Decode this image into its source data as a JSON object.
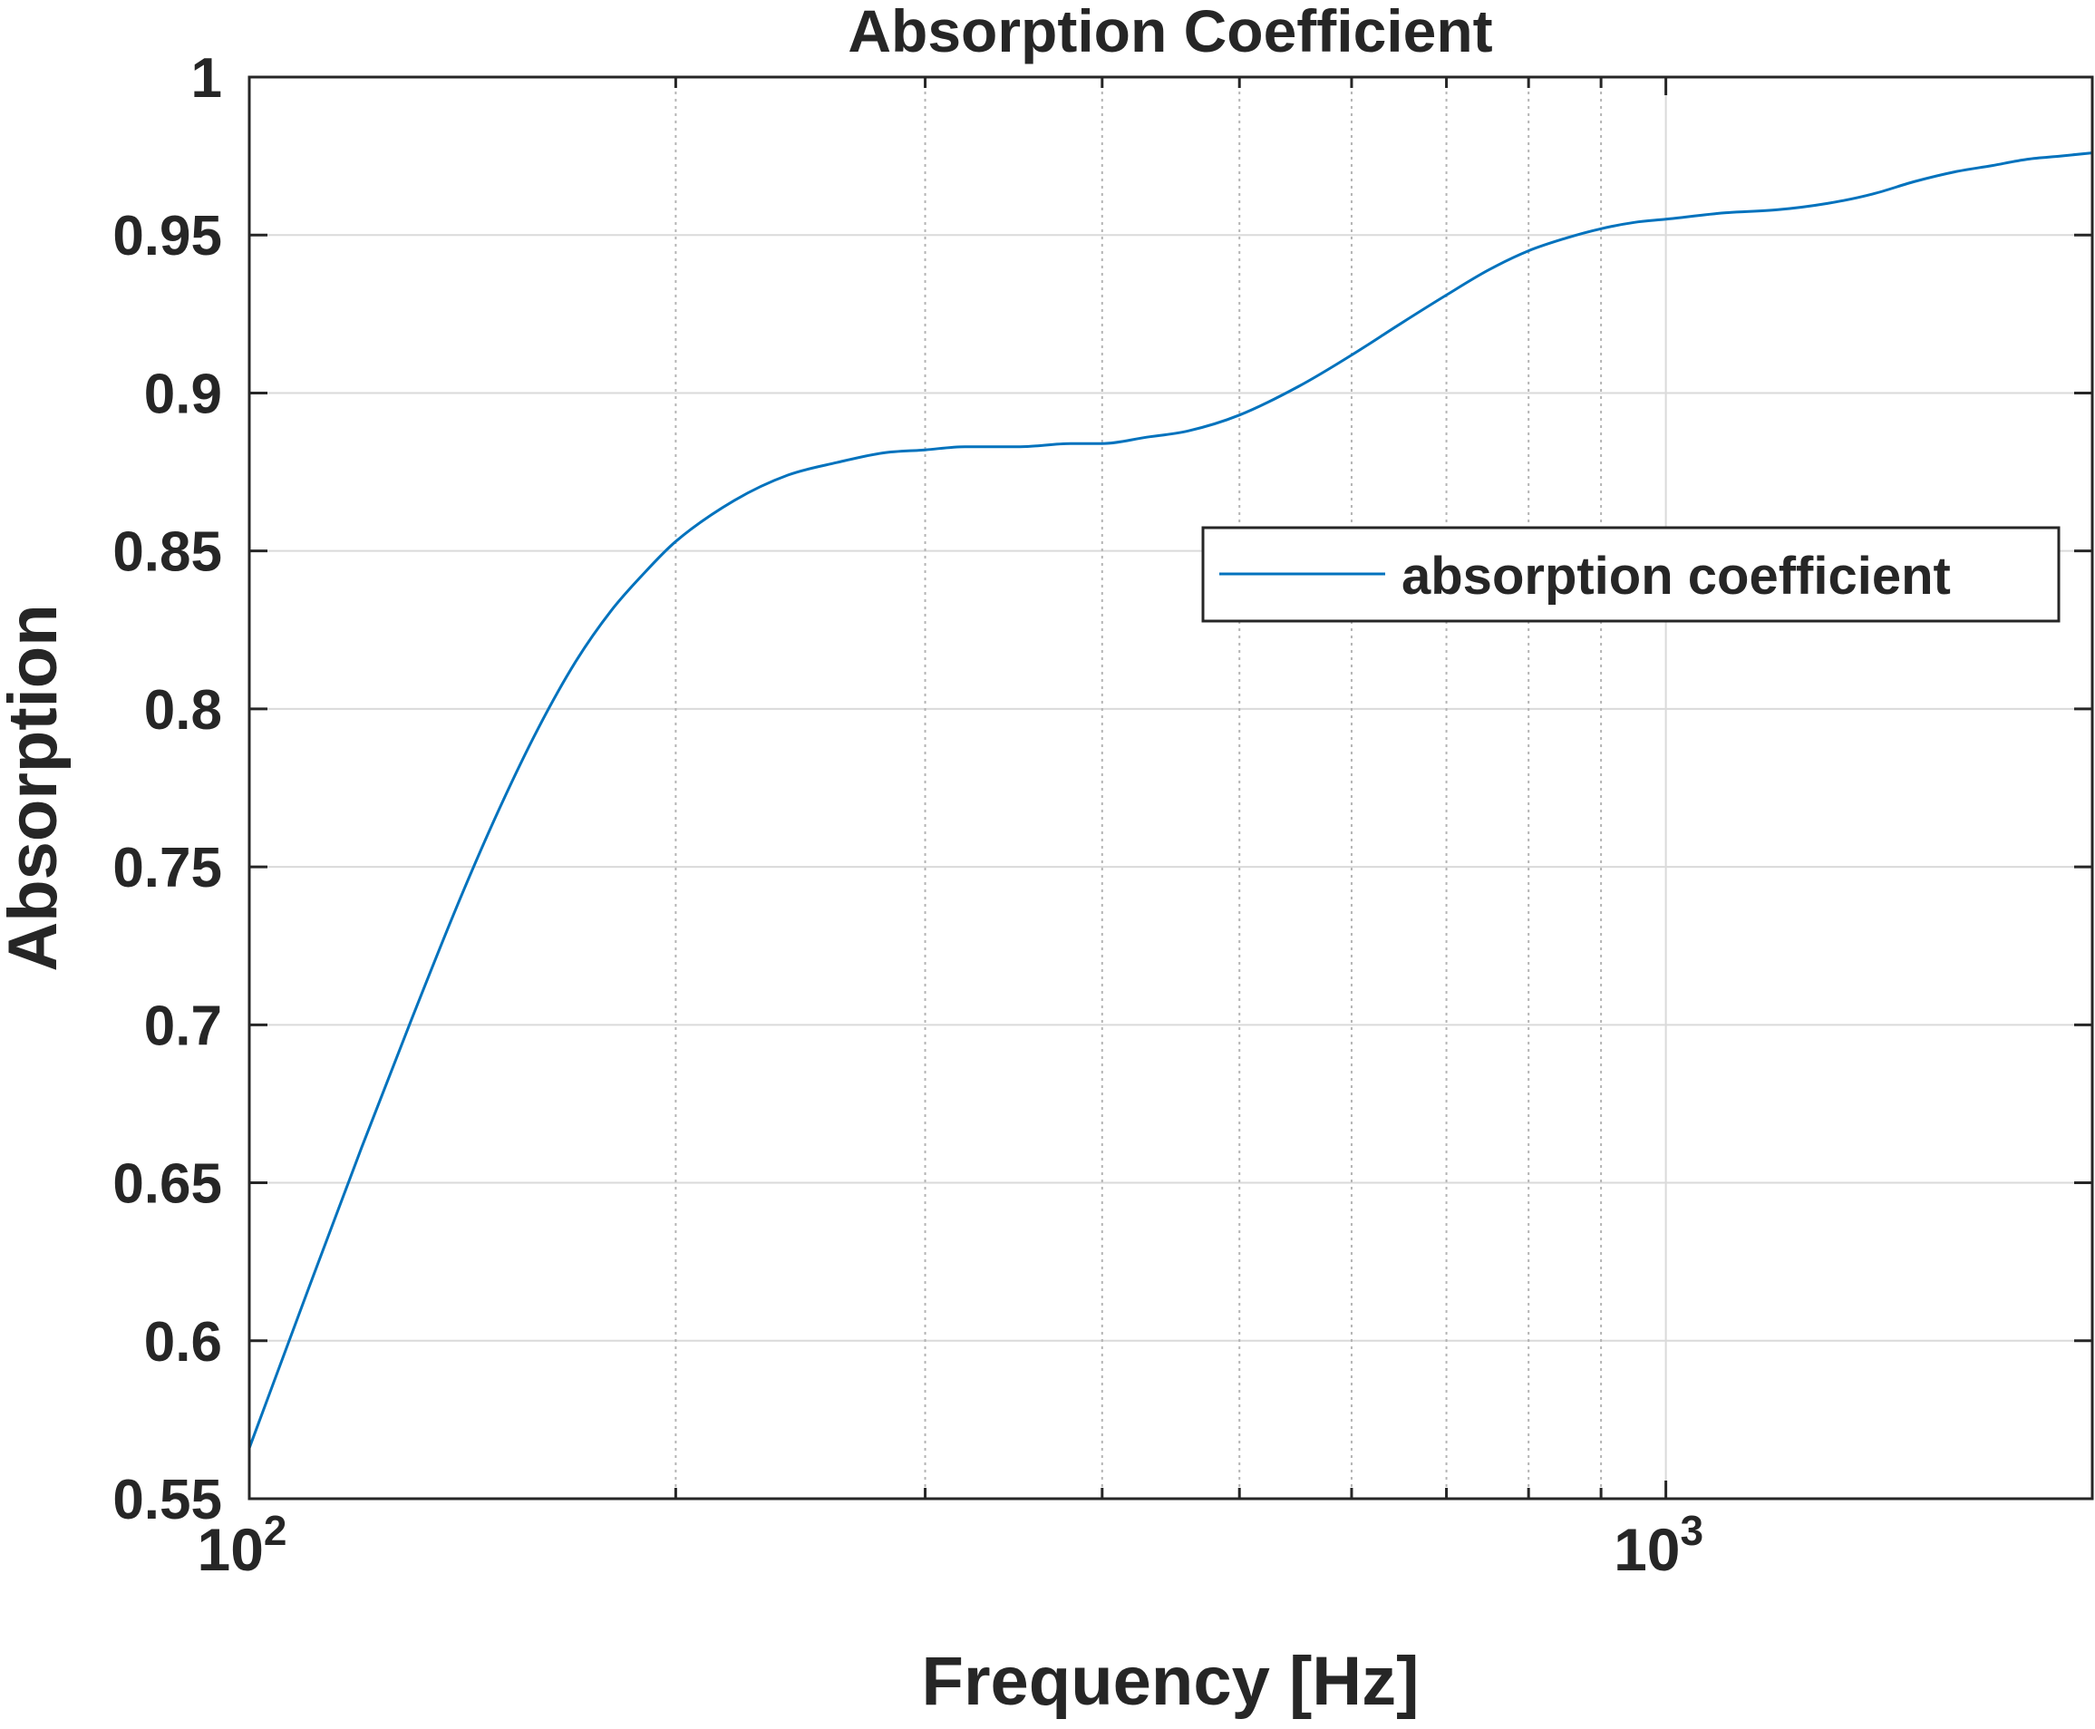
{
  "chart_data": {
    "type": "line",
    "title": "Absorption Coefficient",
    "xlabel": "Frequency [Hz]",
    "ylabel": "Absorption",
    "xscale": "log",
    "xlim": [
      100,
      2000
    ],
    "ylim": [
      0.55,
      1
    ],
    "x_ticks": [
      {
        "value": 100,
        "base": "10",
        "exp": "2"
      },
      {
        "value": 1000,
        "base": "10",
        "exp": "3"
      }
    ],
    "y_ticks": [
      {
        "value": 0.55,
        "label": "0.55"
      },
      {
        "value": 0.6,
        "label": "0.6"
      },
      {
        "value": 0.65,
        "label": "0.65"
      },
      {
        "value": 0.7,
        "label": "0.7"
      },
      {
        "value": 0.75,
        "label": "0.75"
      },
      {
        "value": 0.8,
        "label": "0.8"
      },
      {
        "value": 0.85,
        "label": "0.85"
      },
      {
        "value": 0.9,
        "label": "0.9"
      },
      {
        "value": 0.95,
        "label": "0.95"
      },
      {
        "value": 1,
        "label": "1"
      }
    ],
    "minor_x_gridlines": [
      200,
      300,
      400,
      500,
      600,
      700,
      800,
      900
    ],
    "major_x_gridlines": [
      1000
    ],
    "grid": true,
    "legend_position": "upper-right",
    "colors": {
      "series": "#0072bd",
      "grid": "#dadada",
      "minor_grid": "#b4b4b4",
      "axes": "#262626"
    },
    "series": [
      {
        "name": "absorption coefficient",
        "x": [
          100,
          110,
          120,
          130,
          140,
          150,
          160,
          170,
          180,
          190,
          200,
          220,
          240,
          260,
          280,
          300,
          320,
          350,
          380,
          400,
          430,
          460,
          500,
          550,
          600,
          650,
          700,
          750,
          800,
          850,
          900,
          950,
          1000,
          1100,
          1200,
          1300,
          1400,
          1500,
          1600,
          1700,
          1800,
          1900,
          2000
        ],
        "y": [
          0.566,
          0.616,
          0.661,
          0.701,
          0.737,
          0.768,
          0.794,
          0.815,
          0.831,
          0.843,
          0.853,
          0.866,
          0.874,
          0.878,
          0.881,
          0.882,
          0.883,
          0.883,
          0.884,
          0.884,
          0.886,
          0.888,
          0.893,
          0.902,
          0.912,
          0.922,
          0.931,
          0.939,
          0.945,
          0.949,
          0.952,
          0.954,
          0.955,
          0.957,
          0.958,
          0.96,
          0.963,
          0.967,
          0.97,
          0.972,
          0.974,
          0.975,
          0.976
        ]
      }
    ]
  }
}
